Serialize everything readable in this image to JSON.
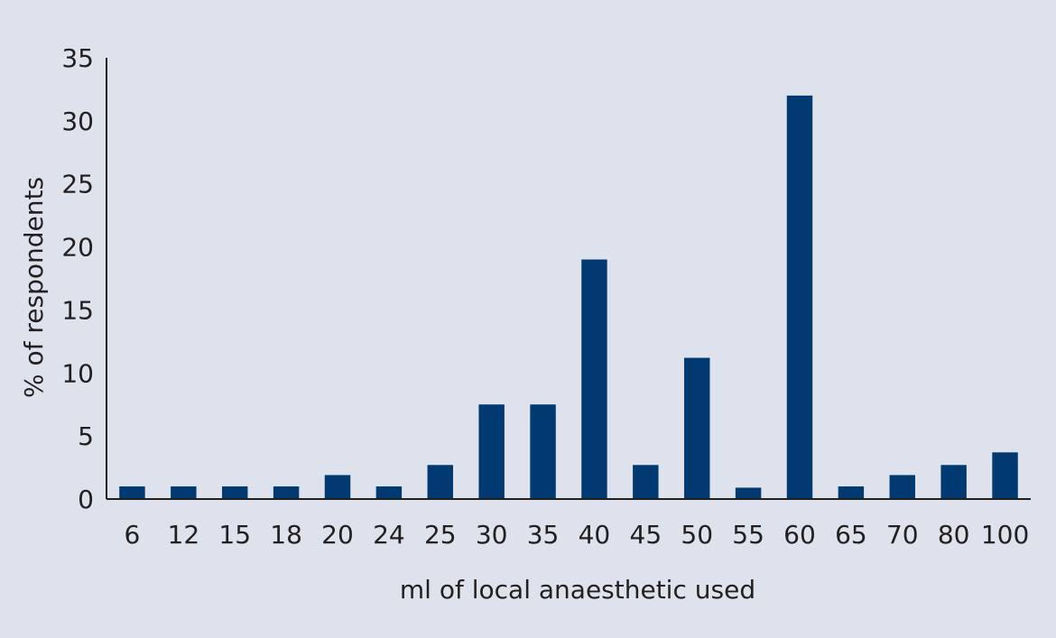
{
  "colors": {
    "background": "#dde2ec",
    "bar": "#003a70",
    "axis": "#231f20"
  },
  "chart_data": {
    "type": "bar",
    "categories": [
      "6",
      "12",
      "15",
      "18",
      "20",
      "24",
      "25",
      "30",
      "35",
      "40",
      "45",
      "50",
      "55",
      "60",
      "65",
      "70",
      "80",
      "100"
    ],
    "values": [
      1,
      1,
      1,
      1,
      1.9,
      1,
      2.7,
      7.5,
      7.5,
      19,
      2.7,
      11.2,
      0.9,
      32,
      1,
      1.9,
      2.7,
      3.7
    ],
    "xlabel": "ml of local anaesthetic used",
    "ylabel": "% of respondents",
    "ylim": [
      0,
      35
    ],
    "yticks": [
      0,
      5,
      10,
      15,
      20,
      25,
      30,
      35
    ],
    "grid": false,
    "legend": "none"
  }
}
